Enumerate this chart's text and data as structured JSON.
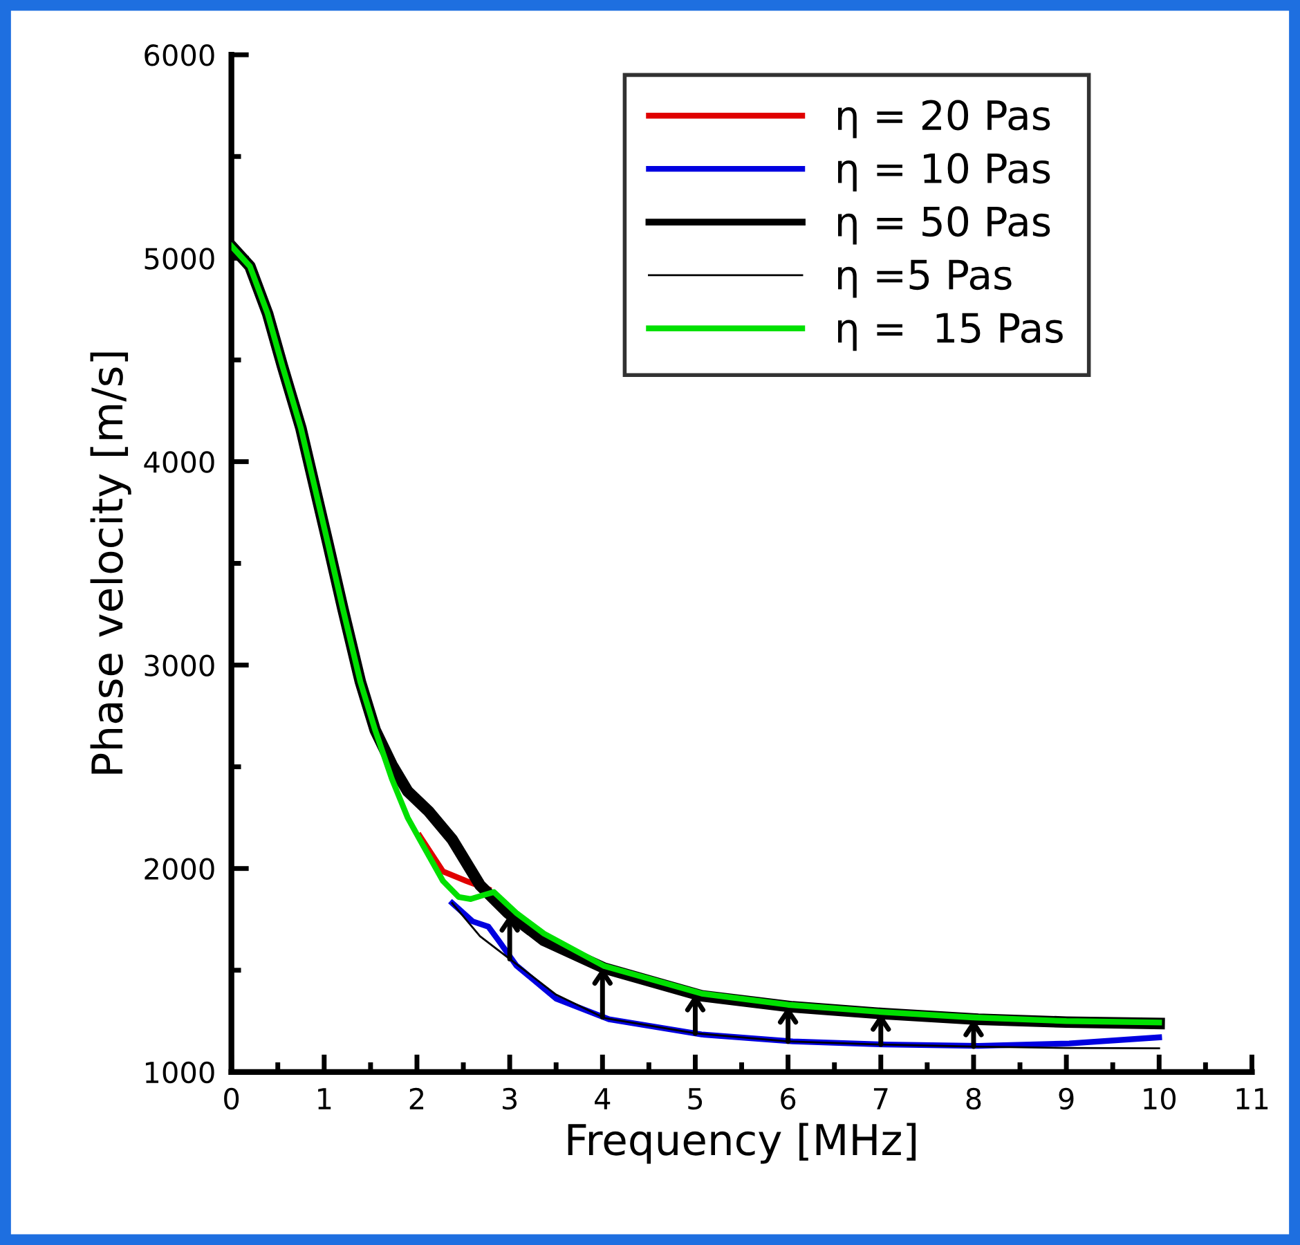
{
  "chart_data": {
    "type": "line",
    "xlabel": "Frequency [MHz]",
    "ylabel": "Phase velocity [m/s]",
    "xlim": [
      0,
      11
    ],
    "ylim": [
      1000,
      6000
    ],
    "xticks": [
      0,
      1,
      2,
      3,
      4,
      5,
      6,
      7,
      8,
      9,
      10,
      11
    ],
    "yticks": [
      1000,
      2000,
      3000,
      4000,
      5000,
      6000
    ],
    "grid": false,
    "legend": "top right",
    "marker": "none",
    "line_style": "solid",
    "series": [
      {
        "name": "η = 20 Pas",
        "color": "#e00000",
        "x": [
          2.03,
          2.28,
          2.53,
          2.77
        ],
        "values": [
          2160,
          1986,
          1939,
          1898
        ]
      },
      {
        "name": "η = 10 Pas",
        "color": "#0000e0",
        "x": [
          2.38,
          2.6,
          2.77,
          2.88,
          3.07,
          3.5,
          4.07,
          5.07,
          6.05,
          7.05,
          8.05,
          9.03,
          10.0
        ],
        "values": [
          1830,
          1740,
          1714,
          1646,
          1524,
          1360,
          1259,
          1184,
          1150,
          1135,
          1128,
          1140,
          1170
        ]
      },
      {
        "name": "η = 50 Pas",
        "color": "#000000",
        "x": [
          0,
          0.2,
          0.39,
          0.55,
          0.75,
          1.04,
          1.2,
          1.39,
          1.55,
          1.73,
          1.9,
          2.13,
          2.38,
          2.68,
          2.98,
          3.37,
          4.02,
          5.07,
          6.05,
          7.05,
          8.05,
          9.0,
          10.0
        ],
        "values": [
          5060,
          4960,
          4728,
          4470,
          4163,
          3599,
          3280,
          2918,
          2680,
          2510,
          2380,
          2279,
          2143,
          1918,
          1782,
          1646,
          1510,
          1374,
          1320,
          1286,
          1259,
          1245,
          1238
        ]
      },
      {
        "name": "η =5 Pas",
        "color": "#000000",
        "x": [
          2.38,
          2.68,
          3.07,
          3.5,
          4.02,
          5.0,
          6.0,
          7.0,
          8.0,
          9.0,
          10.0
        ],
        "values": [
          1830,
          1667,
          1531,
          1380,
          1265,
          1190,
          1150,
          1135,
          1125,
          1118,
          1116
        ]
      },
      {
        "name": "η =  15 Pas",
        "color": "#00e000",
        "x": [
          0,
          0.2,
          0.39,
          0.55,
          0.75,
          1.04,
          1.2,
          1.39,
          1.55,
          1.73,
          1.9,
          2.03,
          2.28,
          2.45,
          2.58,
          2.73,
          2.83,
          3.07,
          3.37,
          4.02,
          5.07,
          6.0,
          7.0,
          8.0,
          9.0,
          10.0
        ],
        "values": [
          5060,
          4960,
          4728,
          4470,
          4163,
          3599,
          3280,
          2918,
          2680,
          2440,
          2250,
          2143,
          1939,
          1860,
          1850,
          1871,
          1884,
          1782,
          1680,
          1520,
          1385,
          1330,
          1295,
          1268,
          1250,
          1243
        ]
      }
    ]
  }
}
